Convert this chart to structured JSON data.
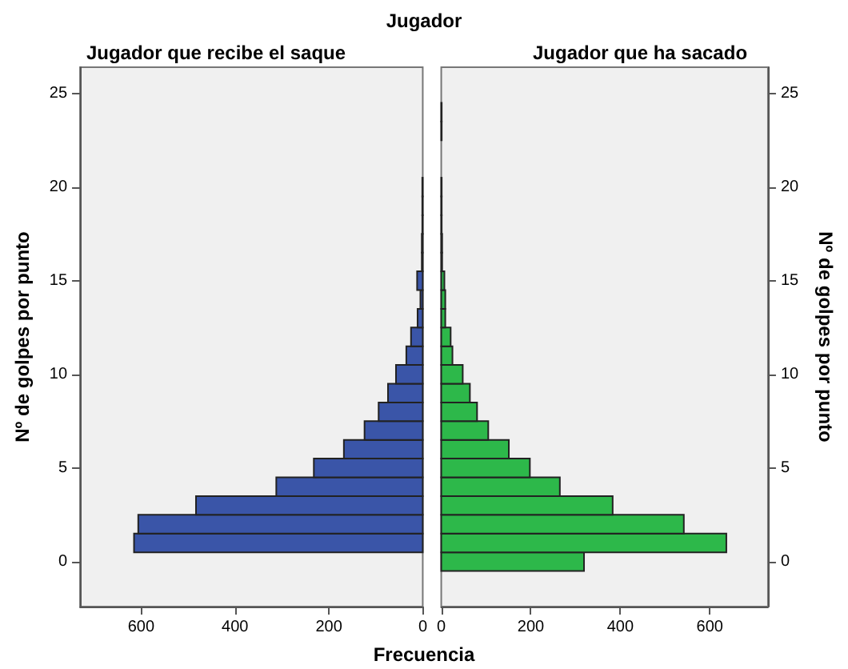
{
  "chart_data": [
    {
      "type": "bar",
      "orientation": "horizontal",
      "title": "Jugador que recibe el saque",
      "annotations": [
        "Jugador"
      ],
      "xlabel": "Frecuencia",
      "ylabel": "Nº de golpes por punto",
      "x": [
        1,
        2,
        3,
        4,
        5,
        6,
        7,
        8,
        9,
        10,
        11,
        12,
        13,
        14,
        15,
        16,
        17,
        18,
        19,
        20
      ],
      "values": [
        615,
        606,
        483,
        312,
        232,
        168,
        124,
        94,
        74,
        57,
        35,
        25,
        11,
        5,
        12,
        2,
        2,
        1,
        1,
        1
      ],
      "color": "#3a55a8",
      "xlim": [
        730,
        0
      ],
      "xticks": [
        0,
        200,
        400,
        600
      ],
      "ylim": [
        -2.4,
        26.4
      ],
      "yticks": [
        0,
        5,
        10,
        15,
        20,
        25
      ],
      "grid": false
    },
    {
      "type": "bar",
      "orientation": "horizontal",
      "title": "Jugador que ha sacado",
      "ylabel": "Nº de golpes por punto",
      "x": [
        0,
        1,
        2,
        3,
        4,
        5,
        6,
        7,
        8,
        9,
        10,
        11,
        12,
        13,
        14,
        15,
        16,
        17,
        18,
        19,
        20,
        23,
        24
      ],
      "values": [
        319,
        637,
        542,
        383,
        265,
        198,
        151,
        105,
        80,
        64,
        48,
        25,
        21,
        9,
        9,
        7,
        2,
        2,
        1,
        1,
        1,
        1,
        1
      ],
      "color": "#2db84a",
      "xlim": [
        0,
        730
      ],
      "xticks": [
        0,
        200,
        400,
        600
      ],
      "ylim": [
        -2.4,
        26.4
      ],
      "yticks": [
        0,
        5,
        10,
        15,
        20,
        25
      ],
      "grid": false
    }
  ]
}
